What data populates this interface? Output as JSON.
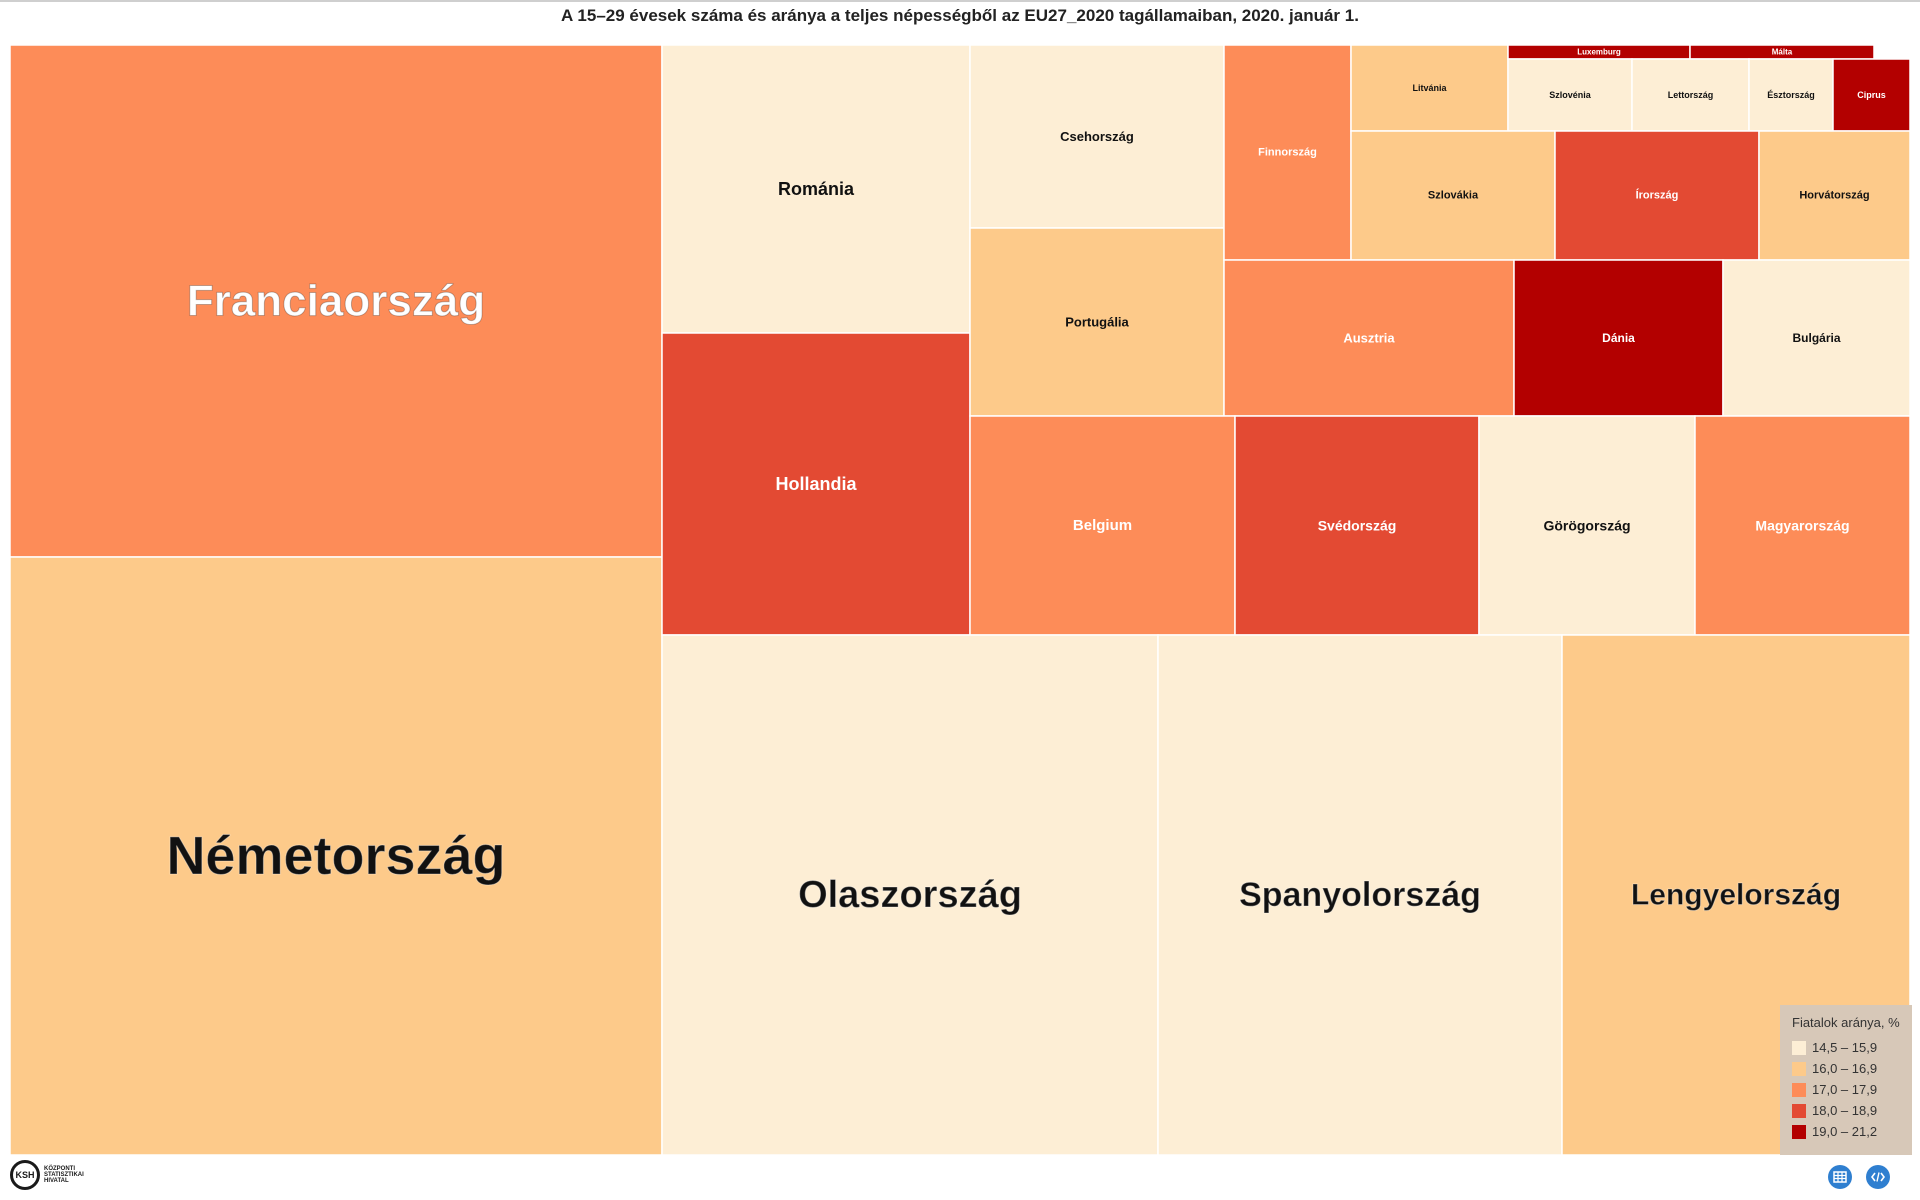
{
  "title": "A 15–29 évesek száma és aránya a teljes népességből az EU27_2020 tagállamaiban, 2020. január 1.",
  "chart_data": {
    "type": "treemap",
    "title": "A 15–29 évesek száma és aránya a teljes népességből az EU27_2020 tagállamaiban, 2020. január 1.",
    "color_legend": {
      "title": "Fiatalok aránya, %",
      "bins": [
        {
          "label": "14,5 – 15,9",
          "color": "#fdeed5"
        },
        {
          "label": "16,0 – 16,9",
          "color": "#fdca8a"
        },
        {
          "label": "17,0 – 17,9",
          "color": "#fd8c58"
        },
        {
          "label": "18,0 – 18,9",
          "color": "#e34a33"
        },
        {
          "label": "19,0 – 21,2",
          "color": "#b30000"
        }
      ]
    },
    "items": [
      {
        "name": "Franciaország",
        "size": 11.9,
        "bin": 2
      },
      {
        "name": "Németország",
        "size": 13.2,
        "bin": 1
      },
      {
        "name": "Románia",
        "size": 3.2,
        "bin": 0
      },
      {
        "name": "Hollandia",
        "size": 3.3,
        "bin": 3
      },
      {
        "name": "Csehország",
        "size": 1.7,
        "bin": 0
      },
      {
        "name": "Portugália",
        "size": 1.7,
        "bin": 1
      },
      {
        "name": "Finnország",
        "size": 1.0,
        "bin": 2
      },
      {
        "name": "Litvánia",
        "size": 0.48,
        "bin": 1
      },
      {
        "name": "Luxemburg",
        "size": 0.12,
        "bin": 4
      },
      {
        "name": "Málta",
        "size": 0.08,
        "bin": 4
      },
      {
        "name": "Szlovénia",
        "size": 0.3,
        "bin": 0
      },
      {
        "name": "Lettország",
        "size": 0.28,
        "bin": 0
      },
      {
        "name": "Észtország",
        "size": 0.2,
        "bin": 0
      },
      {
        "name": "Ciprus",
        "size": 0.17,
        "bin": 4
      },
      {
        "name": "Szlovákia",
        "size": 0.97,
        "bin": 1
      },
      {
        "name": "Írország",
        "size": 0.97,
        "bin": 3
      },
      {
        "name": "Horvátország",
        "size": 0.69,
        "bin": 1
      },
      {
        "name": "Ausztria",
        "size": 1.6,
        "bin": 2
      },
      {
        "name": "Dánia",
        "size": 1.15,
        "bin": 4
      },
      {
        "name": "Bulgária",
        "size": 1.02,
        "bin": 0
      },
      {
        "name": "Belgium",
        "size": 2.1,
        "bin": 2
      },
      {
        "name": "Svédország",
        "size": 1.9,
        "bin": 3
      },
      {
        "name": "Görögország",
        "size": 1.7,
        "bin": 0
      },
      {
        "name": "Magyarország",
        "size": 1.7,
        "bin": 2
      },
      {
        "name": "Olaszország",
        "size": 9.1,
        "bin": 0
      },
      {
        "name": "Spanyolország",
        "size": 7.1,
        "bin": 0
      },
      {
        "name": "Lengyelország",
        "size": 6.4,
        "bin": 1
      }
    ]
  },
  "footer": {
    "logo_abbr": "KSH",
    "logo_lines": [
      "KÖZPONTI",
      "STATISZTIKAI",
      "HIVATAL"
    ],
    "table_icon": "table-icon",
    "embed_icon": "embed-code-icon"
  }
}
